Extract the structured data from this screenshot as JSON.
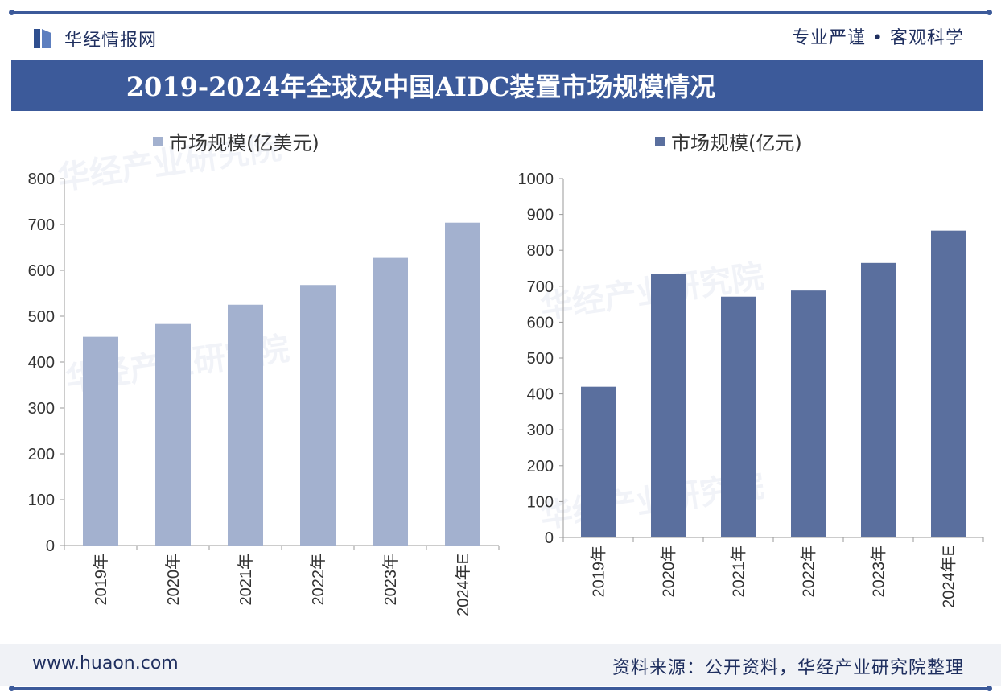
{
  "brand": {
    "name": "华经情报网",
    "motto": "专业严谨 • 客观科学"
  },
  "title": "2019-2024年全球及中国AIDC装置市场规模情况",
  "footer": {
    "url": "www.huaon.com",
    "source": "资料来源：公开资料，华经产业研究院整理"
  },
  "watermarks": [
    "华经产业研究院",
    "华经产业研究院",
    "华经产业研究院",
    "华经产业研究院"
  ],
  "colors": {
    "accent": "#3c5a9a",
    "bar_left": "#a3b1cf",
    "bar_right": "#5a6f9e"
  },
  "chart_data": [
    {
      "type": "bar",
      "categories": [
        "2019年",
        "2020年",
        "2021年",
        "2022年",
        "2023年",
        "2024年E"
      ],
      "series": [
        {
          "name": "市场规模(亿美元)",
          "values": [
            455,
            483,
            525,
            568,
            627,
            704
          ]
        }
      ],
      "ylim": [
        0,
        800
      ],
      "yticks": [
        0,
        100,
        200,
        300,
        400,
        500,
        600,
        700,
        800
      ],
      "legend": "top-left",
      "grid": false
    },
    {
      "type": "bar",
      "categories": [
        "2019年",
        "2020年",
        "2021年",
        "2022年",
        "2023年",
        "2024年E"
      ],
      "series": [
        {
          "name": "市场规模(亿元)",
          "values": [
            420,
            735,
            671,
            688,
            765,
            855
          ]
        }
      ],
      "ylim": [
        0,
        1000
      ],
      "yticks": [
        0,
        100,
        200,
        300,
        400,
        500,
        600,
        700,
        800,
        900,
        1000
      ],
      "legend": "top-center",
      "grid": false
    }
  ]
}
